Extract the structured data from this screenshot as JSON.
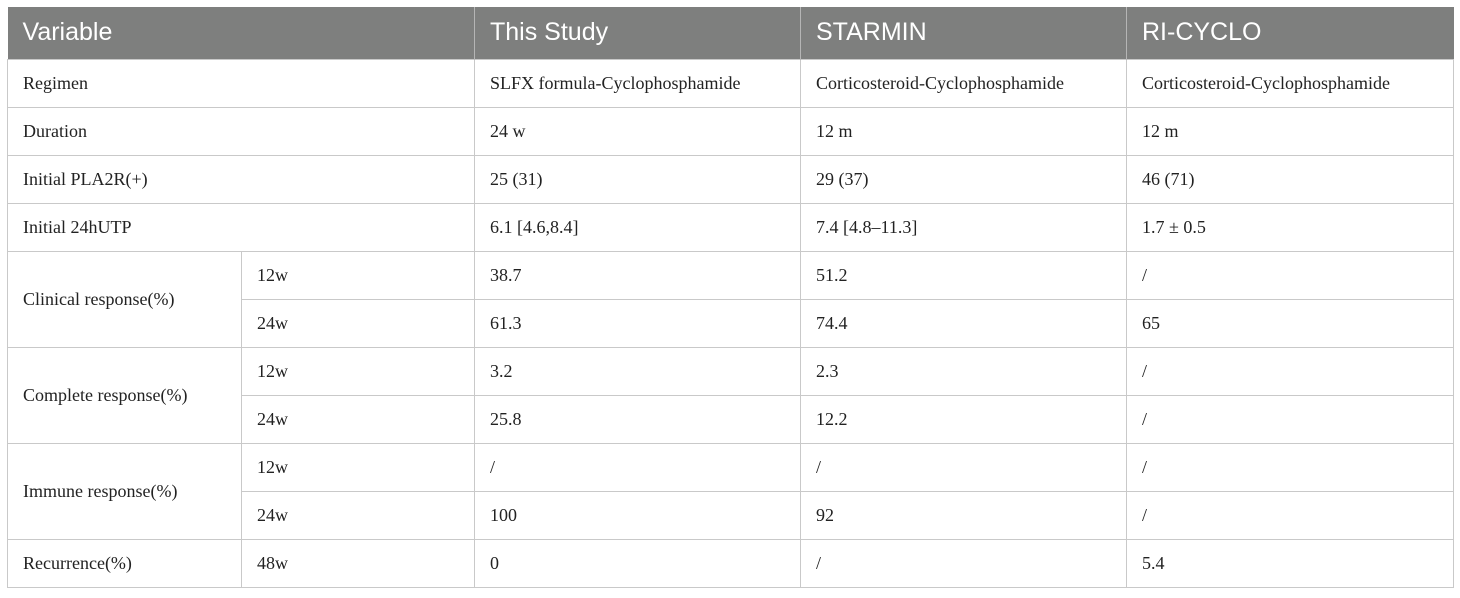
{
  "header": {
    "variable": "Variable",
    "this_study": "This Study",
    "starmin": "STARMIN",
    "ri_cyclo": "RI-CYCLO"
  },
  "rows": {
    "regimen": {
      "label": "Regimen",
      "this_study": "SLFX formula-Cyclophosphamide",
      "starmin": "Corticosteroid-Cyclophosphamide",
      "ri_cyclo": "Corticosteroid-Cyclophosphamide"
    },
    "duration": {
      "label": "Duration",
      "this_study": "24 w",
      "starmin": "12 m",
      "ri_cyclo": "12 m"
    },
    "pla2r": {
      "label": "Initial PLA2R(+)",
      "this_study": "25 (31)",
      "starmin": "29 (37)",
      "ri_cyclo": "46 (71)"
    },
    "utp": {
      "label": "Initial 24hUTP",
      "this_study": "6.1 [4.6,8.4]",
      "starmin": "7.4 [4.8–11.3]",
      "ri_cyclo": "1.7 ± 0.5"
    },
    "clinical": {
      "label": "Clinical response(%)",
      "w12": {
        "time": "12w",
        "this_study": "38.7",
        "starmin": "51.2",
        "ri_cyclo": "/"
      },
      "w24": {
        "time": "24w",
        "this_study": "61.3",
        "starmin": "74.4",
        "ri_cyclo": "65"
      }
    },
    "complete": {
      "label": "Complete response(%)",
      "w12": {
        "time": "12w",
        "this_study": "3.2",
        "starmin": "2.3",
        "ri_cyclo": "/"
      },
      "w24": {
        "time": "24w",
        "this_study": "25.8",
        "starmin": "12.2",
        "ri_cyclo": "/"
      }
    },
    "immune": {
      "label": "Immune response(%)",
      "w12": {
        "time": "12w",
        "this_study": "/",
        "starmin": "/",
        "ri_cyclo": "/"
      },
      "w24": {
        "time": "24w",
        "this_study": "100",
        "starmin": "92",
        "ri_cyclo": "/"
      }
    },
    "recurrence": {
      "label": "Recurrence(%)",
      "time": "48w",
      "this_study": "0",
      "starmin": "/",
      "ri_cyclo": "5.4"
    }
  }
}
